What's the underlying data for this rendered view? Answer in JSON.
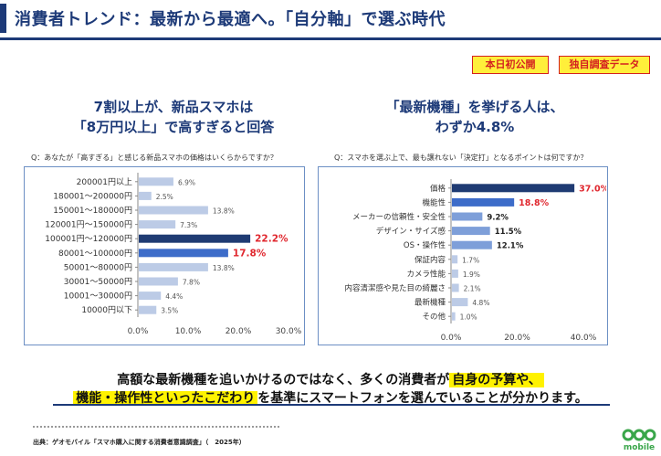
{
  "header": {
    "title": "消費者トレンド：最新から最適へ。「自分軸」で選ぶ時代"
  },
  "badges": {
    "first": "本日初公開",
    "original": "独自調査データ"
  },
  "left": {
    "headline_line1": "7割以上が、新品スマホは",
    "headline_line2": "「8万円以上」で高すぎると回答",
    "question": "Q：あなたが「高すぎる」と感じる新品スマホの価格はいくらからですか？"
  },
  "right": {
    "headline_line1": "「最新機種」を挙げる人は、",
    "headline_line2": "わずか4.8%",
    "question": "Q：スマホを選ぶ上で、最も譲れない「決定打」となるポイントは何ですか？"
  },
  "chart_data": [
    {
      "type": "bar",
      "orientation": "horizontal",
      "categories": [
        "200001円以上",
        "180001～200000円",
        "150001～180000円",
        "120001円～150000円",
        "100001円～120000円",
        "80001～100000円",
        "50001～80000円",
        "30001～50000円",
        "10001～30000円",
        "10000円以下"
      ],
      "values": [
        6.9,
        2.5,
        13.8,
        7.3,
        22.2,
        17.8,
        13.8,
        7.8,
        4.4,
        3.5
      ],
      "data_labels": [
        "6.9%",
        "2.5%",
        "13.8%",
        "7.3%",
        "22.2%",
        "17.8%",
        "13.8%",
        "7.8%",
        "4.4%",
        "3.5%"
      ],
      "highlight": [
        "none",
        "none",
        "none",
        "none",
        "dark",
        "mid",
        "none",
        "none",
        "none",
        "none"
      ],
      "xlim": [
        0,
        30
      ],
      "xticks": [
        "0.0%",
        "10.0%",
        "20.0%",
        "30.0%"
      ],
      "grid": false,
      "colors": {
        "light": "#bccbe6",
        "mid": "#3d6cc9",
        "dark": "#1f3b73",
        "highlight_label": "#e0282f",
        "normal_label": "#555555"
      }
    },
    {
      "type": "bar",
      "orientation": "horizontal",
      "categories": [
        "価格",
        "機能性",
        "メーカーの信頼性・安全性",
        "デザイン・サイズ感",
        "OS・操作性",
        "保証内容",
        "カメラ性能",
        "内容清潔感や見た目の綺麗さ",
        "最新機種",
        "その他"
      ],
      "values": [
        37.0,
        18.8,
        9.2,
        11.5,
        12.1,
        1.7,
        1.9,
        2.1,
        4.8,
        1.0
      ],
      "data_labels": [
        "37.0%",
        "18.8%",
        "9.2%",
        "11.5%",
        "12.1%",
        "1.7%",
        "1.9%",
        "2.1%",
        "4.8%",
        "1.0%"
      ],
      "highlight": [
        "dark",
        "mid",
        "bold",
        "bold",
        "bold",
        "none",
        "none",
        "none",
        "none",
        "none"
      ],
      "xlim": [
        0,
        40
      ],
      "xticks": [
        "0.0%",
        "20.0%",
        "40.0%"
      ],
      "grid": false,
      "colors": {
        "light": "#bccbe6",
        "normal": "#7e9fd9",
        "mid": "#3d6cc9",
        "dark": "#1f3b73",
        "highlight_label": "#e0282f",
        "normal_label": "#555555"
      }
    }
  ],
  "summary": {
    "line1_a": "高額な最新機種を追いかけるのではなく、多くの消費者が",
    "line1_hl": "自身の予算や、",
    "line2_hl": "機能・操作性といったこだわり",
    "line2_b": "を基準にスマートフォンを選んでいることが分かります。"
  },
  "source": "出典：ゲオモバイル「スマホ購入に関する消費者意識調査」（　2025年）",
  "logo": {
    "text": "mobile"
  }
}
